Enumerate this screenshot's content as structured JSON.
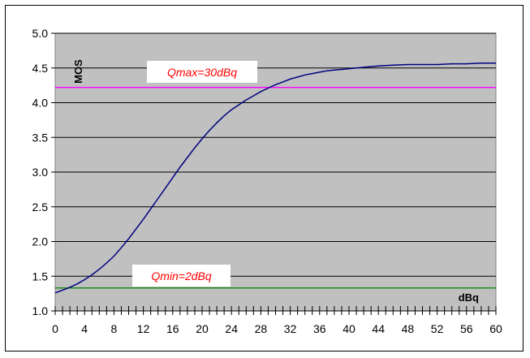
{
  "chart_data": {
    "type": "line",
    "title": "",
    "xlabel": "dBq",
    "ylabel": "MOS",
    "xlim": [
      0,
      60
    ],
    "ylim": [
      1.0,
      5.0
    ],
    "x_ticks": [
      "0",
      "4",
      "8",
      "12",
      "16",
      "20",
      "24",
      "28",
      "32",
      "36",
      "40",
      "44",
      "48",
      "52",
      "56",
      "60"
    ],
    "y_ticks": [
      "1.0",
      "1.5",
      "2.0",
      "2.5",
      "3.0",
      "3.5",
      "4.0",
      "4.5",
      "5.0"
    ],
    "grid": "horizontal",
    "legend": "none",
    "series": [
      {
        "color": "#000080",
        "x": [
          0,
          1,
          2,
          3,
          4,
          5,
          6,
          7,
          8,
          9,
          10,
          11,
          12,
          13,
          14,
          15,
          16,
          17,
          18,
          19,
          20,
          21,
          22,
          23,
          24,
          25,
          26,
          27,
          28,
          29,
          30,
          31,
          32,
          33,
          34,
          35,
          36,
          37,
          38,
          39,
          40,
          42,
          44,
          46,
          48,
          50,
          52,
          54,
          56,
          58,
          60
        ],
        "y": [
          1.26,
          1.3,
          1.34,
          1.39,
          1.45,
          1.52,
          1.6,
          1.69,
          1.79,
          1.91,
          2.04,
          2.18,
          2.32,
          2.47,
          2.62,
          2.77,
          2.92,
          3.07,
          3.21,
          3.35,
          3.48,
          3.6,
          3.71,
          3.81,
          3.9,
          3.97,
          4.04,
          4.1,
          4.16,
          4.21,
          4.26,
          4.3,
          4.34,
          4.37,
          4.4,
          4.42,
          4.44,
          4.46,
          4.47,
          4.48,
          4.49,
          4.51,
          4.53,
          4.54,
          4.55,
          4.55,
          4.55,
          4.56,
          4.56,
          4.57,
          4.57
        ]
      }
    ],
    "reference_lines": [
      {
        "label": "Qmax=30dBq",
        "y": 4.22,
        "color": "#ff00ff"
      },
      {
        "label": "Qmin=2dBq",
        "y": 1.33,
        "color": "#008000"
      }
    ]
  },
  "colors": {
    "plot_background": "#c0c0c0",
    "gridline": "#000000",
    "curve": "#000080",
    "annotation_text": "#ff0000"
  }
}
